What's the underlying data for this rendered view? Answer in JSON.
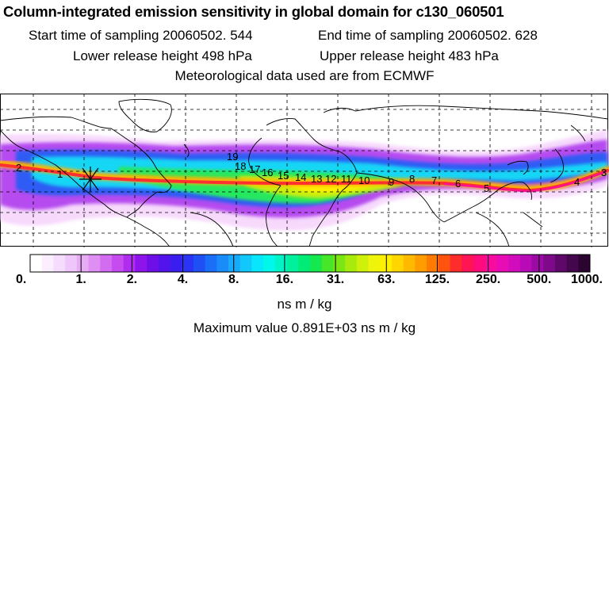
{
  "header": {
    "title": "Column-integrated emission sensitivity in global domain for c130_060501",
    "start_time": "Start time of sampling 20060502.   544",
    "end_time": "End time of sampling 20060502.   628",
    "lower_height": "Lower release height  498 hPa",
    "upper_height": "Upper release height  483 hPa",
    "met_data": "Meteorological data used are from ECMWF"
  },
  "map": {
    "trajectory_labels": [
      "2",
      "1",
      "19",
      "18",
      "17",
      "16",
      "15",
      "14",
      "13",
      "12",
      "11",
      "10",
      "9",
      "8",
      "7",
      "6",
      "5",
      "4",
      "3"
    ],
    "palette_note": "sensitivity field shades follow colorbar"
  },
  "colorbar": {
    "colors": [
      "#ffffff",
      "#fbeefe",
      "#f5dcfc",
      "#efc6fa",
      "#e8acf7",
      "#df8ef4",
      "#d46cf2",
      "#c64cf0",
      "#b02cee",
      "#8f14ec",
      "#6f0fe8",
      "#5214ea",
      "#3a1ef0",
      "#2a34f4",
      "#1f50f6",
      "#1a6ef8",
      "#1a8cfa",
      "#18aafb",
      "#12c8fb",
      "#08e6fb",
      "#00f7ea",
      "#00f4c6",
      "#00f09e",
      "#00ec76",
      "#14e84e",
      "#46e628",
      "#7ae614",
      "#a8ea0c",
      "#cef00a",
      "#eef40a",
      "#fff000",
      "#ffd600",
      "#ffba00",
      "#ff9c00",
      "#ff7a00",
      "#ff5410",
      "#ff2c2c",
      "#ff1454",
      "#ff0c7c",
      "#f80ca0",
      "#e80cb4",
      "#d00cbc",
      "#b80ab6",
      "#9c0aa4",
      "#7e0a8a",
      "#60086a",
      "#44064c",
      "#2c0430"
    ],
    "tick_labels": [
      "0.",
      "1.",
      "2.",
      "4.",
      "8.",
      "16.",
      "31.",
      "63.",
      "125.",
      "250.",
      "500.",
      "1000."
    ],
    "units": "ns m / kg"
  },
  "max_value": "Maximum value  0.891E+03 ns m / kg"
}
